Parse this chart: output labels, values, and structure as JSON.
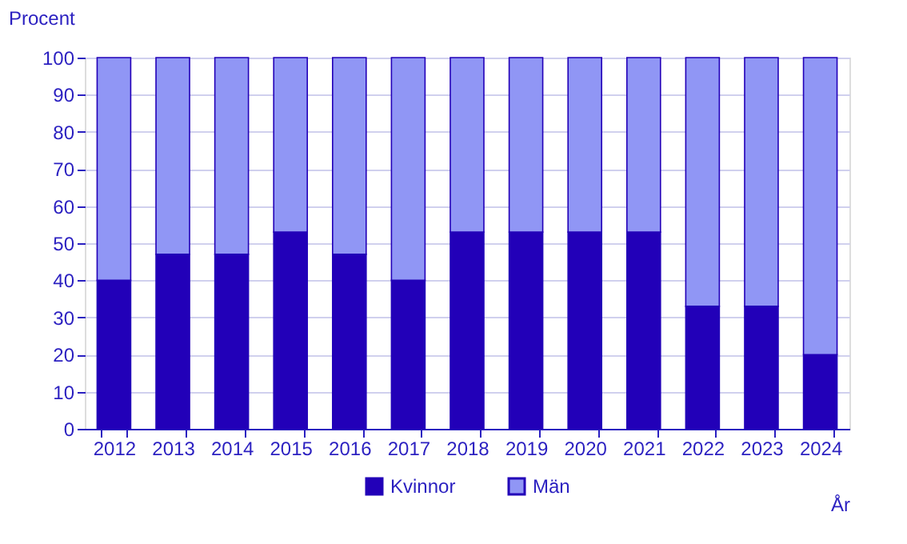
{
  "chart_data": {
    "type": "bar",
    "stacked": true,
    "ylabel": "Procent",
    "xlabel": "År",
    "categories": [
      "2012",
      "2013",
      "2014",
      "2015",
      "2016",
      "2017",
      "2018",
      "2019",
      "2020",
      "2021",
      "2022",
      "2023",
      "2024"
    ],
    "series": [
      {
        "name": "Kvinnor",
        "color": "#2200b8",
        "values": [
          40,
          47,
          47,
          53,
          47,
          40,
          53,
          53,
          53,
          53,
          33,
          33,
          20
        ]
      },
      {
        "name": "Män",
        "color": "#9096f5",
        "values": [
          60,
          53,
          53,
          47,
          53,
          60,
          47,
          47,
          47,
          47,
          67,
          67,
          80
        ]
      }
    ],
    "ylim": [
      0,
      100
    ],
    "yticks": [
      0,
      10,
      20,
      30,
      40,
      50,
      60,
      70,
      80,
      90,
      100
    ],
    "grid": "y",
    "legend": "bottom"
  }
}
